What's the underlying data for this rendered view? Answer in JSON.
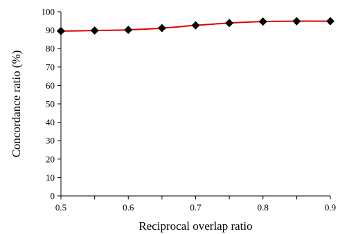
{
  "chart_data": {
    "type": "line",
    "title": "",
    "xlabel": "Reciprocal overlap ratio",
    "ylabel": "Concordance ratio (%)",
    "xlim": [
      0.5,
      0.9
    ],
    "ylim": [
      0,
      100
    ],
    "x_ticks": [
      "0.5",
      "0.6",
      "0.7",
      "0.8",
      "0.9"
    ],
    "y_ticks": [
      "0",
      "10",
      "20",
      "30",
      "40",
      "50",
      "60",
      "70",
      "80",
      "90",
      "100"
    ],
    "grid": false,
    "legend": "none",
    "series": [
      {
        "x": [
          0.5,
          0.55,
          0.6,
          0.65,
          0.7,
          0.75,
          0.8,
          0.85,
          0.9
        ],
        "values": [
          89.5,
          89.8,
          90.2,
          91.1,
          92.6,
          93.9,
          94.7,
          94.9,
          94.9
        ],
        "line_color": "#e00000",
        "marker": "diamond",
        "marker_color": "#000000"
      }
    ]
  }
}
